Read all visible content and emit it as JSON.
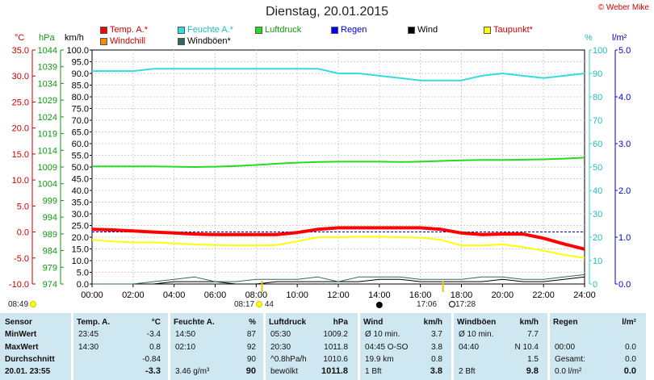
{
  "title": "Dienstag, 20.01.2015",
  "copyright": "© Weber Mike",
  "legend": [
    {
      "label": "Temp. A.*",
      "color": "#ff0000",
      "text_color": "#cc0000"
    },
    {
      "label": "Feuchte A.*",
      "color": "#33dddd",
      "text_color": "#20bcbc"
    },
    {
      "label": "Luftdruck",
      "color": "#22dd22",
      "text_color": "#119911"
    },
    {
      "label": "Regen",
      "color": "#0000ff",
      "text_color": "#0000cc"
    },
    {
      "label": "Wind",
      "color": "#000000",
      "text_color": "#000000"
    },
    {
      "label": "Taupunkt*",
      "color": "#ffff00",
      "text_color": "#cc0000"
    },
    {
      "label": "Windchill",
      "color": "#ff8800",
      "text_color": "#cc0000"
    },
    {
      "label": "Windböen*",
      "color": "#336666",
      "text_color": "#000000"
    }
  ],
  "units": {
    "temp": "°C",
    "pressure": "hPa",
    "wind": "km/h",
    "humidity": "%",
    "rain": "l/m²"
  },
  "axes": {
    "temp_ticks": [
      "35.0",
      "30.0",
      "25.0",
      "20.0",
      "15.0",
      "10.0",
      "5.0",
      "0.0",
      "-5.0",
      "-10.0"
    ],
    "pressure_ticks": [
      "1044",
      "1039",
      "1034",
      "1029",
      "1024",
      "1019",
      "1014",
      "1009",
      "1004",
      "999",
      "994",
      "989",
      "984",
      "979",
      "974"
    ],
    "wind_ticks": [
      "100.0",
      "95.0",
      "90.0",
      "85.0",
      "80.0",
      "75.0",
      "70.0",
      "65.0",
      "60.0",
      "55.0",
      "50.0",
      "45.0",
      "40.0",
      "35.0",
      "30.0",
      "25.0",
      "20.0",
      "15.0",
      "10.0",
      "5.0",
      "0.0"
    ],
    "humidity_ticks": [
      "100",
      "90",
      "80",
      "70",
      "60",
      "50",
      "40",
      "30",
      "20",
      "10",
      "0"
    ],
    "rain_ticks": [
      "5.0",
      "4.0",
      "3.0",
      "2.0",
      "1.0",
      "0.0"
    ],
    "time_ticks": [
      "00:00",
      "02:00",
      "04:00",
      "06:00",
      "08:00",
      "10:00",
      "12:00",
      "14:00",
      "16:00",
      "18:00",
      "20:00",
      "22:00",
      "24:00"
    ]
  },
  "chart_data": {
    "type": "line",
    "x": [
      0,
      1,
      2,
      3,
      4,
      5,
      6,
      7,
      8,
      9,
      10,
      11,
      12,
      13,
      14,
      15,
      16,
      17,
      18,
      19,
      20,
      21,
      22,
      23,
      24
    ],
    "xlim": [
      0,
      24
    ],
    "ylim_wind": [
      0,
      100
    ],
    "series": [
      {
        "name": "Feuchte A.*",
        "unit": "%",
        "color": "#33dddd",
        "values": [
          91,
          91,
          91,
          92,
          92,
          92,
          92,
          92,
          92,
          92,
          92,
          92,
          90,
          90,
          89,
          88,
          87,
          87,
          87,
          89,
          90,
          89,
          88,
          89,
          90
        ]
      },
      {
        "name": "Luftdruck",
        "unit": "hPa",
        "color": "#22dd22",
        "values": [
          1009.2,
          1009.2,
          1009.2,
          1009.2,
          1009.1,
          1009.0,
          1009.1,
          1009.3,
          1009.6,
          1010.0,
          1010.3,
          1010.5,
          1010.6,
          1010.6,
          1010.6,
          1010.5,
          1010.6,
          1010.8,
          1011.0,
          1011.1,
          1011.1,
          1011.2,
          1011.3,
          1011.5,
          1011.8
        ]
      },
      {
        "name": "Temp. A.*",
        "unit": "°C",
        "color": "#ff0000",
        "values": [
          0.5,
          0.4,
          0.2,
          0.0,
          -0.2,
          -0.4,
          -0.5,
          -0.5,
          -0.5,
          -0.5,
          -0.1,
          0.5,
          0.8,
          0.8,
          0.8,
          0.8,
          0.8,
          0.5,
          -0.2,
          -0.5,
          -0.4,
          -0.4,
          -1.2,
          -2.3,
          -3.3
        ]
      },
      {
        "name": "Taupunkt*",
        "unit": "°C",
        "color": "#ffff00",
        "values": [
          -1.5,
          -1.8,
          -2.0,
          -2.0,
          -2.2,
          -2.4,
          -2.5,
          -2.6,
          -2.6,
          -2.5,
          -1.8,
          -1.0,
          -1.0,
          -0.9,
          -0.9,
          -1.0,
          -1.1,
          -1.5,
          -2.6,
          -2.6,
          -2.4,
          -2.9,
          -3.6,
          -4.4,
          -5.0
        ]
      },
      {
        "name": "Wind",
        "unit": "km/h",
        "color": "#000000",
        "values": [
          0,
          0,
          0,
          0,
          1,
          1,
          1,
          0,
          0,
          1,
          1,
          1,
          1,
          1,
          2,
          2,
          1,
          1,
          1,
          1,
          2,
          1,
          1,
          2,
          3
        ]
      },
      {
        "name": "Windböen*",
        "unit": "km/h",
        "color": "#336666",
        "values": [
          0,
          0,
          0,
          1,
          2,
          3,
          1,
          1,
          2,
          2,
          2,
          3,
          1,
          3,
          3,
          3,
          2,
          2,
          2,
          3,
          3,
          2,
          2,
          3,
          4
        ]
      }
    ],
    "markers": {
      "sunrise": "08:17",
      "sunset": "17:06",
      "moonrise": "17:28",
      "moonset": "14:00",
      "day_length": "44",
      "start_label": "08:49"
    }
  },
  "table": {
    "columns": [
      {
        "header": "Sensor",
        "rows": [
          "MinWert",
          "MaxWert",
          "Durchschnitt",
          "20.01.  23:55"
        ]
      },
      {
        "header": "Temp. A.",
        "unit": "°C",
        "rows": [
          [
            "23:45",
            "-3.4"
          ],
          [
            "14:30",
            "0.8"
          ],
          [
            "",
            "-0.84"
          ],
          [
            "",
            "-3.3"
          ]
        ]
      },
      {
        "header": "Feuchte A.",
        "unit": "%",
        "rows": [
          [
            "14:50",
            "87"
          ],
          [
            "02:10",
            "92"
          ],
          [
            "",
            "90"
          ],
          [
            "3.46 g/m³",
            "90"
          ]
        ]
      },
      {
        "header": "Luftdruck",
        "unit": "hPa",
        "rows": [
          [
            "05:30",
            "1009.2"
          ],
          [
            "20:30",
            "1011.8"
          ],
          [
            "^0.8hPa/h",
            "1010.6"
          ],
          [
            "bewölkt",
            "1011.8"
          ]
        ]
      },
      {
        "header": "Wind",
        "unit": "km/h",
        "rows": [
          [
            "Ø 10 min.",
            "3.7"
          ],
          [
            "04:45   O-SO",
            "3.8"
          ],
          [
            "19.9 km",
            "0.8"
          ],
          [
            "1 Bft",
            "3.8"
          ]
        ]
      },
      {
        "header": "Windböen",
        "unit": "km/h",
        "rows": [
          [
            "Ø 10 min.",
            "7.7"
          ],
          [
            "04:40",
            "N 10.4"
          ],
          [
            "",
            "1.5"
          ],
          [
            "2 Bft",
            "9.8"
          ]
        ]
      },
      {
        "header": "Regen",
        "unit": "l/m²",
        "rows": [
          [
            "",
            ""
          ],
          [
            "00:00",
            "0.0"
          ],
          [
            "Gesamt:",
            "0.0"
          ],
          [
            "0.0 l/m²",
            "0.0"
          ]
        ]
      }
    ]
  }
}
